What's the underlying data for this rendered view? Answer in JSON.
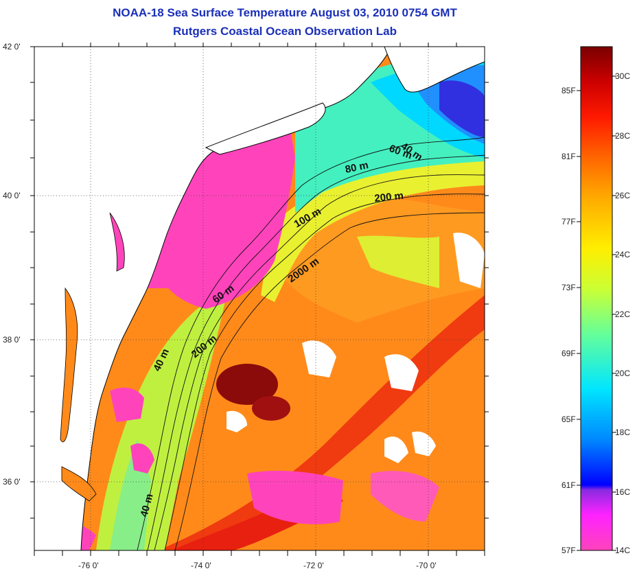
{
  "title_line1": "NOAA-18 Sea Surface Temperature August 03, 2010 0754 GMT",
  "title_line2": "Rutgers Coastal Ocean Observation Lab",
  "lat_labels": [
    "42 0'",
    "40 0'",
    "38 0'",
    "36 0'"
  ],
  "lon_labels": [
    "-76 0'",
    "-74 0'",
    "-72 0'",
    "-70 0'"
  ],
  "contour_labels": [
    "40 m",
    "60 m",
    "80 m",
    "200 m",
    "100 m",
    "2000 m",
    "60 m",
    "200 m",
    "40 m",
    "40 m"
  ],
  "colorbar": {
    "fahrenheit": [
      "85F",
      "81F",
      "77F",
      "73F",
      "69F",
      "65F",
      "61F",
      "57F"
    ],
    "celsius": [
      "30C",
      "28C",
      "26C",
      "24C",
      "22C",
      "20C",
      "18C",
      "16C",
      "14C"
    ],
    "colors": [
      "#ff44bb",
      "#ff22ff",
      "#8a2be2",
      "#0000ff",
      "#0088ff",
      "#00e5ff",
      "#66ff99",
      "#ccff33",
      "#ffee00",
      "#ffaa00",
      "#ff6600",
      "#ff1a00",
      "#cc0000",
      "#7a0000"
    ]
  }
}
